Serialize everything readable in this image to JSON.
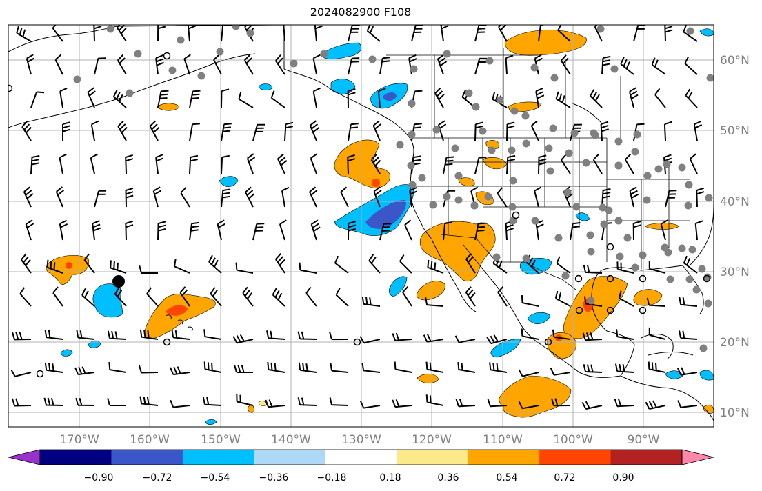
{
  "title": "2024082900 F108",
  "lat_labels": [
    "60°N",
    "50°N",
    "40°N",
    "30°N",
    "20°N",
    "10°N"
  ],
  "lon_labels": [
    "170°W",
    "160°W",
    "150°W",
    "140°W",
    "130°W",
    "120°W",
    "110°W",
    "100°W",
    "90°W"
  ],
  "colorbar": {
    "ticks": [
      "−0.90",
      "−0.72",
      "−0.54",
      "−0.36",
      "−0.18",
      "0.18",
      "0.36",
      "0.54",
      "0.72",
      "0.90"
    ],
    "colors": [
      "#9932CC",
      "#000080",
      "#3A56C9",
      "#00BFFF",
      "#ADD8F6",
      "#FFFFFF",
      "#FCE98A",
      "#FFA500",
      "#FF4500",
      "#B22222",
      "#FF88AA"
    ]
  },
  "colors": {
    "orange": "#FFA500",
    "red_orange": "#FF4500",
    "light_yellow": "#FCE98A",
    "blue": "#00BFFF",
    "royal_blue": "#3A56C9",
    "grid": "#b0b0b0",
    "station": "#808080"
  }
}
